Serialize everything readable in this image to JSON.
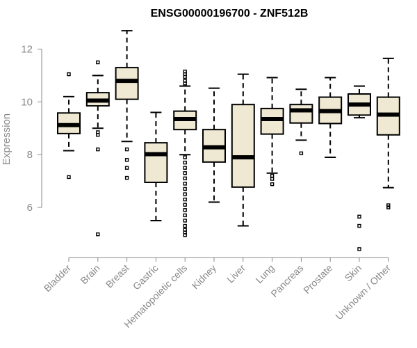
{
  "chart_data": {
    "type": "boxplot",
    "title": "ENSG00000196700 - ZNF512B",
    "xlabel": "",
    "ylabel": "Expression",
    "ylim": [
      4.3,
      12.9
    ],
    "yticks": [
      6,
      8,
      10,
      12
    ],
    "box_color": "#EFE8D2",
    "grid": false,
    "categories": [
      "Bladder",
      "Brain",
      "Breast",
      "Gastric",
      "Hematopoietic cells",
      "Kidney",
      "Liver",
      "Lung",
      "Pancreas",
      "Prostate",
      "Skin",
      "Unknown / Other"
    ],
    "boxes": [
      {
        "label": "Bladder",
        "whisker_low": 8.15,
        "q1": 8.8,
        "median": 9.12,
        "q3": 9.58,
        "whisker_high": 10.2,
        "outliers": [
          7.15,
          11.05
        ]
      },
      {
        "label": "Brain",
        "whisker_low": 9.0,
        "q1": 9.85,
        "median": 10.05,
        "q3": 10.35,
        "whisker_high": 11.0,
        "outliers": [
          4.98,
          8.2,
          8.75,
          8.85,
          11.5
        ]
      },
      {
        "label": "Breast",
        "whisker_low": 8.5,
        "q1": 10.1,
        "median": 10.8,
        "q3": 11.3,
        "whisker_high": 12.7,
        "outliers": [
          7.12,
          7.5,
          7.8,
          8.2
        ]
      },
      {
        "label": "Gastric",
        "whisker_low": 5.5,
        "q1": 6.95,
        "median": 8.02,
        "q3": 8.45,
        "whisker_high": 9.6,
        "outliers": []
      },
      {
        "label": "Hematopoietic cells",
        "whisker_low": 8.0,
        "q1": 8.95,
        "median": 9.35,
        "q3": 9.65,
        "whisker_high": 10.6,
        "outliers": [
          4.95,
          5.05,
          5.15,
          5.3,
          5.5,
          5.7,
          5.9,
          6.1,
          6.3,
          6.5,
          6.7,
          6.9,
          7.1,
          7.3,
          7.5,
          7.7,
          7.9,
          10.7,
          10.8,
          10.95,
          11.05,
          11.15
        ]
      },
      {
        "label": "Kidney",
        "whisker_low": 6.2,
        "q1": 7.72,
        "median": 8.28,
        "q3": 8.95,
        "whisker_high": 10.52,
        "outliers": []
      },
      {
        "label": "Liver",
        "whisker_low": 5.3,
        "q1": 6.77,
        "median": 7.9,
        "q3": 9.9,
        "whisker_high": 11.05,
        "outliers": []
      },
      {
        "label": "Lung",
        "whisker_low": 7.3,
        "q1": 8.78,
        "median": 9.35,
        "q3": 9.75,
        "whisker_high": 10.92,
        "outliers": [
          6.88,
          7.08,
          7.2
        ]
      },
      {
        "label": "Pancreas",
        "whisker_low": 8.55,
        "q1": 9.2,
        "median": 9.68,
        "q3": 9.9,
        "whisker_high": 10.48,
        "outliers": [
          8.05
        ]
      },
      {
        "label": "Prostate",
        "whisker_low": 7.9,
        "q1": 9.18,
        "median": 9.65,
        "q3": 10.18,
        "whisker_high": 10.92,
        "outliers": []
      },
      {
        "label": "Skin",
        "whisker_low": 9.4,
        "q1": 9.5,
        "median": 9.9,
        "q3": 10.3,
        "whisker_high": 10.6,
        "outliers": [
          4.42,
          5.3,
          5.65
        ]
      },
      {
        "label": "Unknown / Other",
        "whisker_low": 6.75,
        "q1": 8.75,
        "median": 9.52,
        "q3": 10.18,
        "whisker_high": 11.65,
        "outliers": [
          6.0,
          6.08
        ]
      }
    ]
  }
}
